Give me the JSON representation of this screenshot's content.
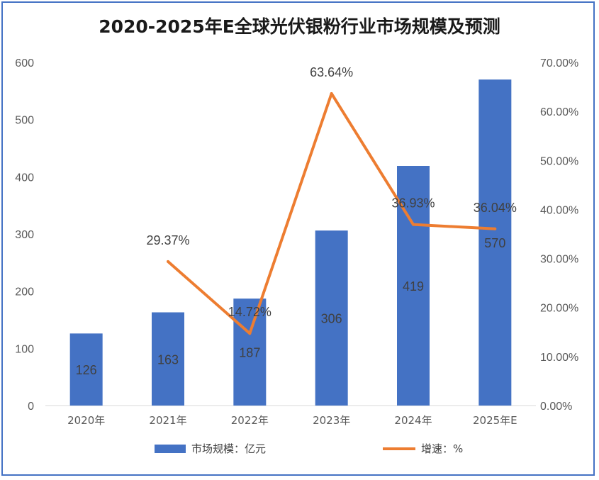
{
  "chart_data": {
    "type": "bar+line",
    "title": "2020-2025年E全球光伏银粉行业市场规模及预测",
    "categories": [
      "2020年",
      "2021年",
      "2022年",
      "2023年",
      "2024年",
      "2025年E"
    ],
    "series": [
      {
        "name": "市场规模：亿元",
        "type": "bar",
        "axis": "left",
        "values": [
          126,
          163,
          187,
          306,
          419,
          570
        ],
        "labels": [
          "126",
          "163",
          "187",
          "306",
          "419",
          "570"
        ],
        "color": "#4472c4"
      },
      {
        "name": "增速：%",
        "type": "line",
        "axis": "right",
        "values": [
          null,
          29.37,
          14.72,
          63.64,
          36.93,
          36.04
        ],
        "labels": [
          "",
          "29.37%",
          "14.72%",
          "63.64%",
          "36.93%",
          "36.04%"
        ],
        "color": "#ed7d31"
      }
    ],
    "y_left": {
      "ylim": [
        0,
        600
      ],
      "ticks": [
        "0",
        "100",
        "200",
        "300",
        "400",
        "500",
        "600"
      ]
    },
    "y_right": {
      "ylim": [
        0,
        70
      ],
      "ticks": [
        "0.00%",
        "10.00%",
        "20.00%",
        "30.00%",
        "40.00%",
        "50.00%",
        "60.00%",
        "70.00%"
      ]
    },
    "grid": false,
    "legend": "bottom"
  }
}
